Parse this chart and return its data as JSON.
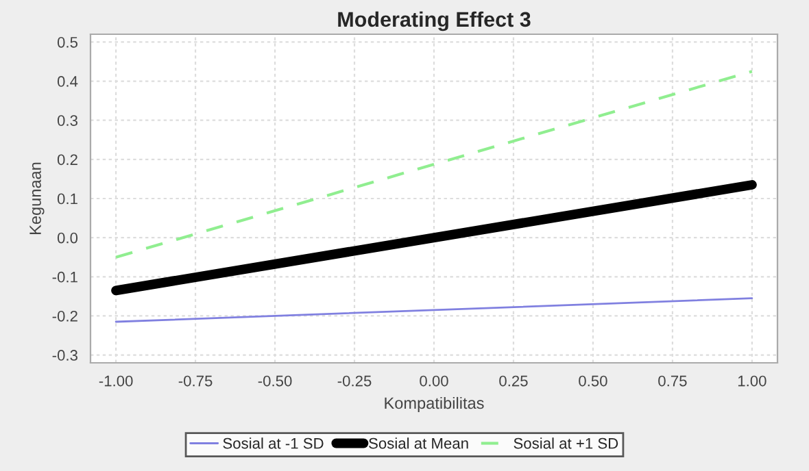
{
  "chart_data": {
    "type": "line",
    "title": "Moderating Effect 3",
    "xlabel": "Kompatibilitas",
    "ylabel": "Kegunaan",
    "x": [
      -1.0,
      1.0
    ],
    "series": [
      {
        "name": "Sosial at -1 SD",
        "color": "#8080e0",
        "values": [
          -0.215,
          -0.155
        ],
        "line_style": "solid"
      },
      {
        "name": "Sosial at Mean",
        "color": "#000000",
        "values": [
          -0.135,
          0.135
        ],
        "line_style": "solid"
      },
      {
        "name": "Sosial at +1 SD",
        "color": "#90ee90",
        "values": [
          -0.05,
          0.425
        ],
        "line_style": "dashed"
      }
    ],
    "xlim": [
      -1.08,
      1.08
    ],
    "ylim": [
      -0.32,
      0.52
    ],
    "xticks": [
      {
        "value": -1,
        "label": "-1.00"
      },
      {
        "value": -0.75,
        "label": "-0.75"
      },
      {
        "value": -0.5,
        "label": "-0.50"
      },
      {
        "value": -0.25,
        "label": "-0.25"
      },
      {
        "value": 0,
        "label": "0.00"
      },
      {
        "value": 0.25,
        "label": "0.25"
      },
      {
        "value": 0.5,
        "label": "0.50"
      },
      {
        "value": 0.75,
        "label": "0.75"
      },
      {
        "value": 1,
        "label": "1.00"
      }
    ],
    "yticks": [
      {
        "value": -0.3,
        "label": "-0.3"
      },
      {
        "value": -0.2,
        "label": "-0.2"
      },
      {
        "value": -0.1,
        "label": "-0.1"
      },
      {
        "value": 0,
        "label": "0.0"
      },
      {
        "value": 0.1,
        "label": "0.1"
      },
      {
        "value": 0.2,
        "label": "0.2"
      },
      {
        "value": 0.3,
        "label": "0.3"
      },
      {
        "value": 0.4,
        "label": "0.4"
      },
      {
        "value": 0.5,
        "label": "0.5"
      }
    ],
    "grid": true,
    "legend": "bottom",
    "marker": "none"
  }
}
